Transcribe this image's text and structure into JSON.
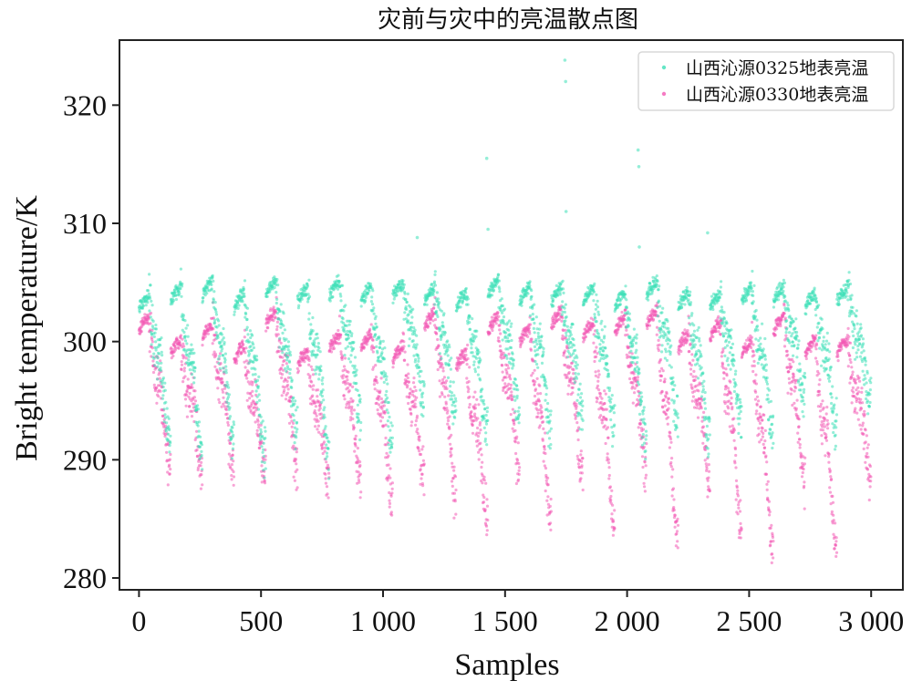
{
  "chart_data": {
    "type": "scatter",
    "title": "灾前与灾中的亮温散点图",
    "xlabel": "Samples",
    "ylabel": "Bright temperature/K",
    "xlim": [
      -80,
      3130
    ],
    "ylim": [
      279,
      325.5
    ],
    "x_ticks": [
      0,
      500,
      1000,
      1500,
      2000,
      2500,
      3000
    ],
    "x_tick_labels": [
      "0",
      "500",
      "1 000",
      "1 500",
      "2 000",
      "2 500",
      "3 000"
    ],
    "y_ticks": [
      280,
      290,
      300,
      310,
      320
    ],
    "y_tick_labels": [
      "280",
      "290",
      "300",
      "310",
      "320"
    ],
    "grid": false,
    "legend_position": "top-right",
    "sample_count": 3000,
    "series": [
      {
        "name": "山西沁源0325地表亮温",
        "color": "#3ee0b8",
        "cycles": [
          {
            "start": 0,
            "high": 303.8,
            "low": 291.0
          },
          {
            "start": 130,
            "high": 304.5,
            "low": 289.5
          },
          {
            "start": 260,
            "high": 305.0,
            "low": 290.5
          },
          {
            "start": 390,
            "high": 304.0,
            "low": 289.5
          },
          {
            "start": 520,
            "high": 305.0,
            "low": 292.0
          },
          {
            "start": 650,
            "high": 304.5,
            "low": 289.5
          },
          {
            "start": 780,
            "high": 305.0,
            "low": 293.0
          },
          {
            "start": 910,
            "high": 304.5,
            "low": 290.5
          },
          {
            "start": 1040,
            "high": 305.0,
            "low": 294.0
          },
          {
            "start": 1170,
            "high": 304.5,
            "low": 293.5
          },
          {
            "start": 1300,
            "high": 304.0,
            "low": 291.5
          },
          {
            "start": 1430,
            "high": 305.0,
            "low": 293.5
          },
          {
            "start": 1560,
            "high": 304.5,
            "low": 291.5
          },
          {
            "start": 1690,
            "high": 304.5,
            "low": 293.0
          },
          {
            "start": 1820,
            "high": 304.5,
            "low": 292.0
          },
          {
            "start": 1950,
            "high": 304.0,
            "low": 291.0
          },
          {
            "start": 2080,
            "high": 305.0,
            "low": 293.0
          },
          {
            "start": 2210,
            "high": 304.0,
            "low": 291.0
          },
          {
            "start": 2340,
            "high": 304.0,
            "low": 292.5
          },
          {
            "start": 2470,
            "high": 304.5,
            "low": 291.5
          },
          {
            "start": 2600,
            "high": 304.5,
            "low": 294.5
          },
          {
            "start": 2730,
            "high": 304.0,
            "low": 292.0
          },
          {
            "start": 2860,
            "high": 304.5,
            "low": 294.0
          }
        ],
        "outliers": [
          {
            "x": 1425,
            "y": 315.5
          },
          {
            "x": 1430,
            "y": 309.5
          },
          {
            "x": 1745,
            "y": 323.8
          },
          {
            "x": 1748,
            "y": 322.0
          },
          {
            "x": 1750,
            "y": 311.0
          },
          {
            "x": 2045,
            "y": 316.2
          },
          {
            "x": 2048,
            "y": 314.8
          },
          {
            "x": 1140,
            "y": 308.8
          },
          {
            "x": 2330,
            "y": 309.2
          },
          {
            "x": 2050,
            "y": 308.0
          }
        ]
      },
      {
        "name": "山西沁源0330地表亮温",
        "color": "#f25ab4",
        "cycles": [
          {
            "start": 0,
            "high": 302.0,
            "low": 288.5
          },
          {
            "start": 130,
            "high": 300.0,
            "low": 289.0
          },
          {
            "start": 260,
            "high": 301.5,
            "low": 288.0
          },
          {
            "start": 390,
            "high": 299.5,
            "low": 288.5
          },
          {
            "start": 520,
            "high": 302.5,
            "low": 288.5
          },
          {
            "start": 650,
            "high": 299.0,
            "low": 287.0
          },
          {
            "start": 780,
            "high": 300.5,
            "low": 288.0
          },
          {
            "start": 910,
            "high": 300.5,
            "low": 285.5
          },
          {
            "start": 1040,
            "high": 299.5,
            "low": 288.0
          },
          {
            "start": 1170,
            "high": 302.5,
            "low": 286.0
          },
          {
            "start": 1300,
            "high": 299.0,
            "low": 284.5
          },
          {
            "start": 1430,
            "high": 302.0,
            "low": 288.5
          },
          {
            "start": 1560,
            "high": 301.0,
            "low": 284.0
          },
          {
            "start": 1690,
            "high": 302.5,
            "low": 288.0
          },
          {
            "start": 1820,
            "high": 301.5,
            "low": 283.5
          },
          {
            "start": 1950,
            "high": 302.0,
            "low": 288.5
          },
          {
            "start": 2080,
            "high": 302.5,
            "low": 282.5
          },
          {
            "start": 2210,
            "high": 300.5,
            "low": 287.5
          },
          {
            "start": 2340,
            "high": 301.5,
            "low": 283.5
          },
          {
            "start": 2470,
            "high": 300.0,
            "low": 281.5
          },
          {
            "start": 2600,
            "high": 302.0,
            "low": 287.0
          },
          {
            "start": 2730,
            "high": 300.0,
            "low": 281.5
          },
          {
            "start": 2860,
            "high": 300.0,
            "low": 288.0
          }
        ],
        "outliers": []
      }
    ]
  }
}
